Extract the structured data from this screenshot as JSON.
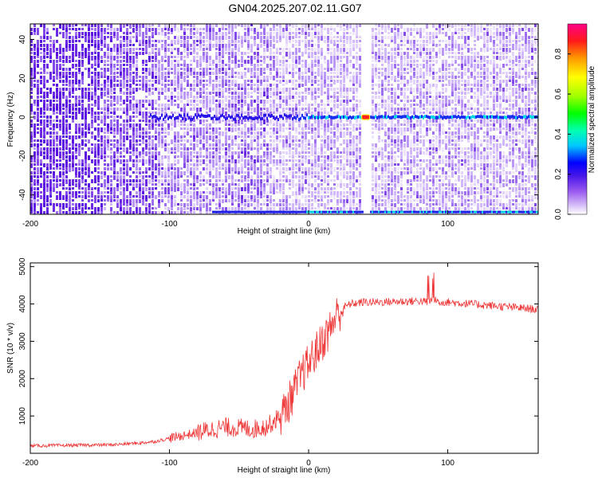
{
  "title": "GN04.2025.207.02.11.G07",
  "chart_data": [
    {
      "type": "heatmap",
      "xlabel": "Height of straight line (km)",
      "ylabel": "Frequency (Hz)",
      "xlim": [
        -200,
        165
      ],
      "ylim": [
        -50,
        48
      ],
      "x_ticks": [
        -200,
        -100,
        0,
        100
      ],
      "y_ticks": [
        -40,
        -20,
        0,
        20,
        40
      ],
      "colorbar": {
        "label": "Normalized spectral amplitude",
        "range": [
          0,
          0.95
        ],
        "ticks": [
          0.0,
          0.2,
          0.4,
          0.6,
          0.8
        ]
      },
      "features": {
        "carrier_line_frequency": 0,
        "peak_x": 41,
        "gap_x": 41,
        "lower_line_frequency": -49,
        "noise_transition_x": -110
      }
    },
    {
      "type": "line",
      "xlabel": "Height of straight line (km)",
      "ylabel": "SNR (10 * v/v)",
      "xlim": [
        -200,
        165
      ],
      "ylim": [
        0,
        5100
      ],
      "x_ticks": [
        -200,
        -100,
        0,
        100
      ],
      "y_ticks": [
        1000,
        2000,
        3000,
        4000,
        5000
      ],
      "series": [
        {
          "color": "#ee3333",
          "x": [
            -200,
            -180,
            -160,
            -140,
            -120,
            -110,
            -100,
            -90,
            -80,
            -70,
            -60,
            -50,
            -40,
            -30,
            -20,
            -15,
            -10,
            -5,
            0,
            5,
            10,
            15,
            20,
            25,
            30,
            40,
            50,
            60,
            70,
            80,
            85,
            90,
            95,
            100,
            110,
            120,
            130,
            140,
            150,
            160,
            165
          ],
          "y": [
            200,
            210,
            220,
            230,
            280,
            320,
            400,
            480,
            550,
            640,
            700,
            680,
            650,
            720,
            1000,
            1300,
            1700,
            2100,
            2400,
            2700,
            3000,
            3300,
            3700,
            3900,
            4000,
            4050,
            4050,
            4060,
            4070,
            4080,
            4050,
            4100,
            4060,
            4050,
            4020,
            3990,
            3960,
            3930,
            3900,
            3870,
            3850
          ]
        }
      ]
    }
  ]
}
